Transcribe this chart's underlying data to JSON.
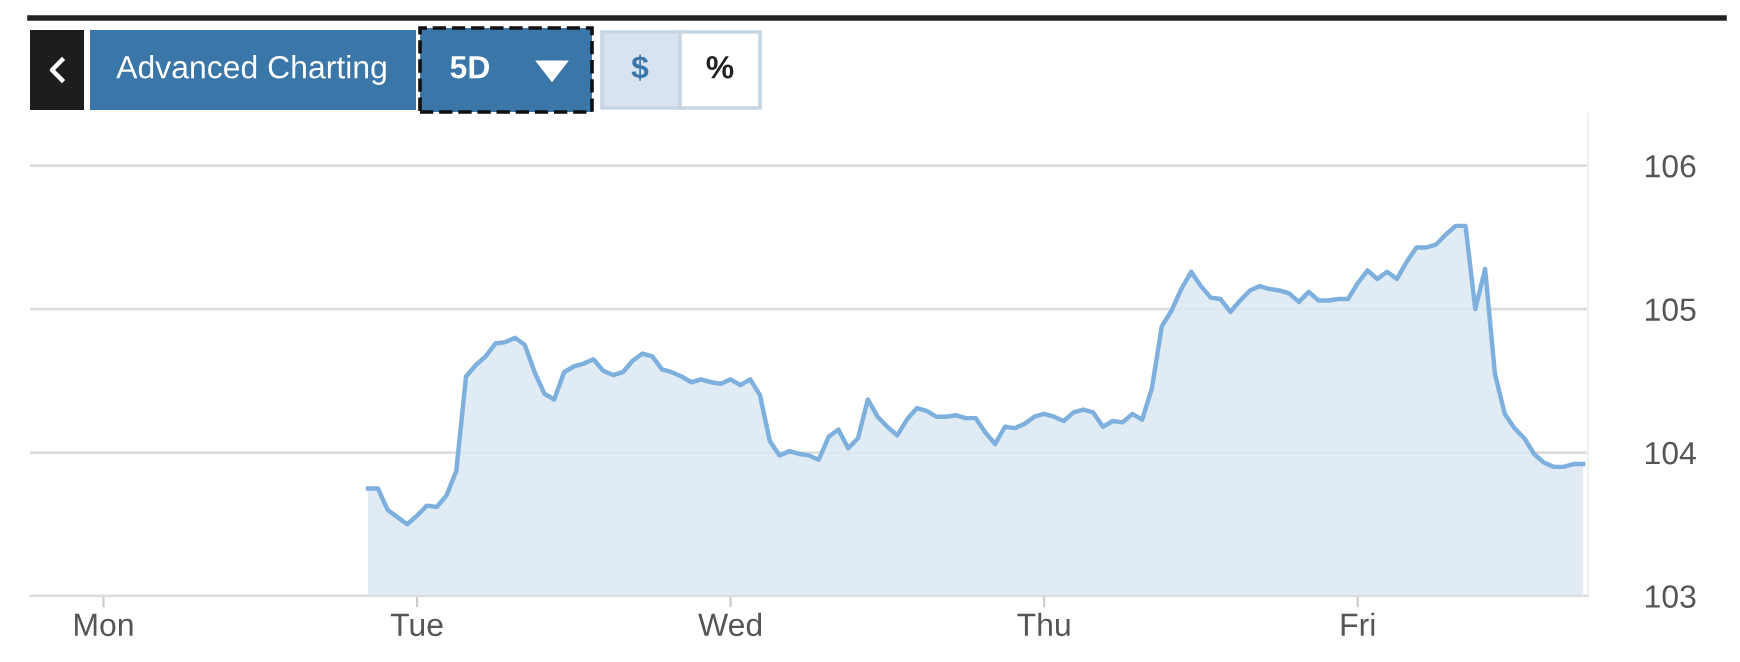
{
  "chart_data": {
    "type": "area",
    "annotations": [
      "Advanced Charting",
      "5D",
      "$",
      "%"
    ],
    "categories": [
      null,
      null,
      null,
      null,
      null,
      null,
      null,
      "Mon",
      null,
      null,
      null,
      null,
      null,
      null,
      null,
      null,
      null,
      null,
      null,
      null,
      null,
      null,
      null,
      null,
      null,
      null,
      null,
      null,
      null,
      null,
      null,
      null,
      null,
      null,
      null,
      null,
      null,
      null,
      null,
      "Tue",
      null,
      null,
      null,
      null,
      null,
      null,
      null,
      null,
      null,
      null,
      null,
      null,
      null,
      null,
      null,
      null,
      null,
      null,
      null,
      null,
      null,
      null,
      null,
      null,
      null,
      null,
      null,
      null,
      null,
      null,
      null,
      "Wed",
      null,
      null,
      null,
      null,
      null,
      null,
      null,
      null,
      null,
      null,
      null,
      null,
      null,
      null,
      null,
      null,
      null,
      null,
      null,
      null,
      null,
      null,
      null,
      null,
      null,
      null,
      null,
      null,
      null,
      null,
      null,
      "Thu",
      null,
      null,
      null,
      null,
      null,
      null,
      null,
      null,
      null,
      null,
      null,
      null,
      null,
      null,
      null,
      null,
      null,
      null,
      null,
      null,
      null,
      null,
      null,
      null,
      null,
      null,
      null,
      null,
      null,
      null,
      null,
      "Fri",
      null,
      null,
      null,
      null,
      null,
      null,
      null,
      null,
      null,
      null,
      null,
      null,
      null,
      null,
      null,
      null,
      null,
      null,
      null,
      null,
      null,
      null,
      null
    ],
    "series": [
      {
        "color": "#7eb0de",
        "values": [
          null,
          null,
          null,
          null,
          null,
          null,
          null,
          null,
          null,
          null,
          null,
          null,
          null,
          null,
          null,
          null,
          null,
          null,
          null,
          null,
          null,
          null,
          null,
          null,
          null,
          null,
          null,
          null,
          null,
          null,
          null,
          null,
          null,
          null,
          103.75,
          103.75,
          103.6,
          103.55,
          103.5,
          103.56,
          103.63,
          103.62,
          103.7,
          103.87,
          104.53,
          104.61,
          104.67,
          104.76,
          104.77,
          104.8,
          104.75,
          104.56,
          104.41,
          104.37,
          104.56,
          104.6,
          104.62,
          104.65,
          104.57,
          104.54,
          104.56,
          104.64,
          104.69,
          104.67,
          104.58,
          104.56,
          104.53,
          104.49,
          104.51,
          104.49,
          104.48,
          104.51,
          104.47,
          104.51,
          104.4,
          104.08,
          103.98,
          104.01,
          103.99,
          103.98,
          103.95,
          104.11,
          104.16,
          104.03,
          104.1,
          104.37,
          104.25,
          104.18,
          104.12,
          104.23,
          104.31,
          104.29,
          104.25,
          104.25,
          104.26,
          104.24,
          104.24,
          104.14,
          104.06,
          104.18,
          104.17,
          104.2,
          104.25,
          104.27,
          104.25,
          104.22,
          104.28,
          104.3,
          104.28,
          104.18,
          104.22,
          104.21,
          104.27,
          104.23,
          104.45,
          104.88,
          104.99,
          105.14,
          105.26,
          105.16,
          105.08,
          105.07,
          104.98,
          105.06,
          105.13,
          105.16,
          105.14,
          105.13,
          105.11,
          105.05,
          105.12,
          105.06,
          105.06,
          105.07,
          105.07,
          105.18,
          105.27,
          105.21,
          105.26,
          105.21,
          105.33,
          105.43,
          105.43,
          105.45,
          105.52,
          105.58,
          105.58,
          105.0,
          105.28,
          104.55,
          104.27,
          104.17,
          104.1,
          103.99,
          103.93,
          103.9,
          103.9,
          103.92,
          103.92
        ]
      }
    ],
    "ylim": [
      103,
      106.36
    ],
    "yticks": [
      103,
      104,
      105,
      106
    ],
    "grid": "y"
  }
}
